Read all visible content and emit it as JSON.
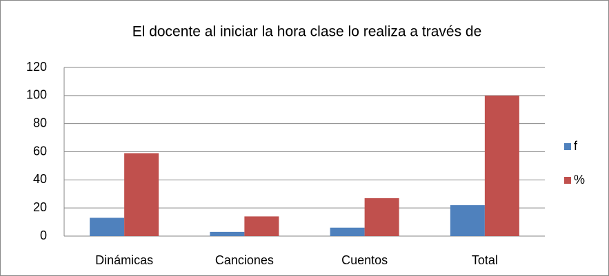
{
  "chart_data": {
    "type": "bar",
    "title": "El docente al iniciar la hora clase lo realiza a través de",
    "categories": [
      "Dinámicas",
      "Canciones",
      "Cuentos",
      "Total"
    ],
    "series": [
      {
        "name": "f",
        "color": "#4f81bd",
        "values": [
          13,
          3,
          6,
          22
        ]
      },
      {
        "name": "%",
        "color": "#c0504d",
        "values": [
          59,
          14,
          27,
          100
        ]
      }
    ],
    "ylim": [
      0,
      120
    ],
    "yticks": [
      0,
      20,
      40,
      60,
      80,
      100,
      120
    ],
    "grid": true,
    "legend": "right"
  }
}
